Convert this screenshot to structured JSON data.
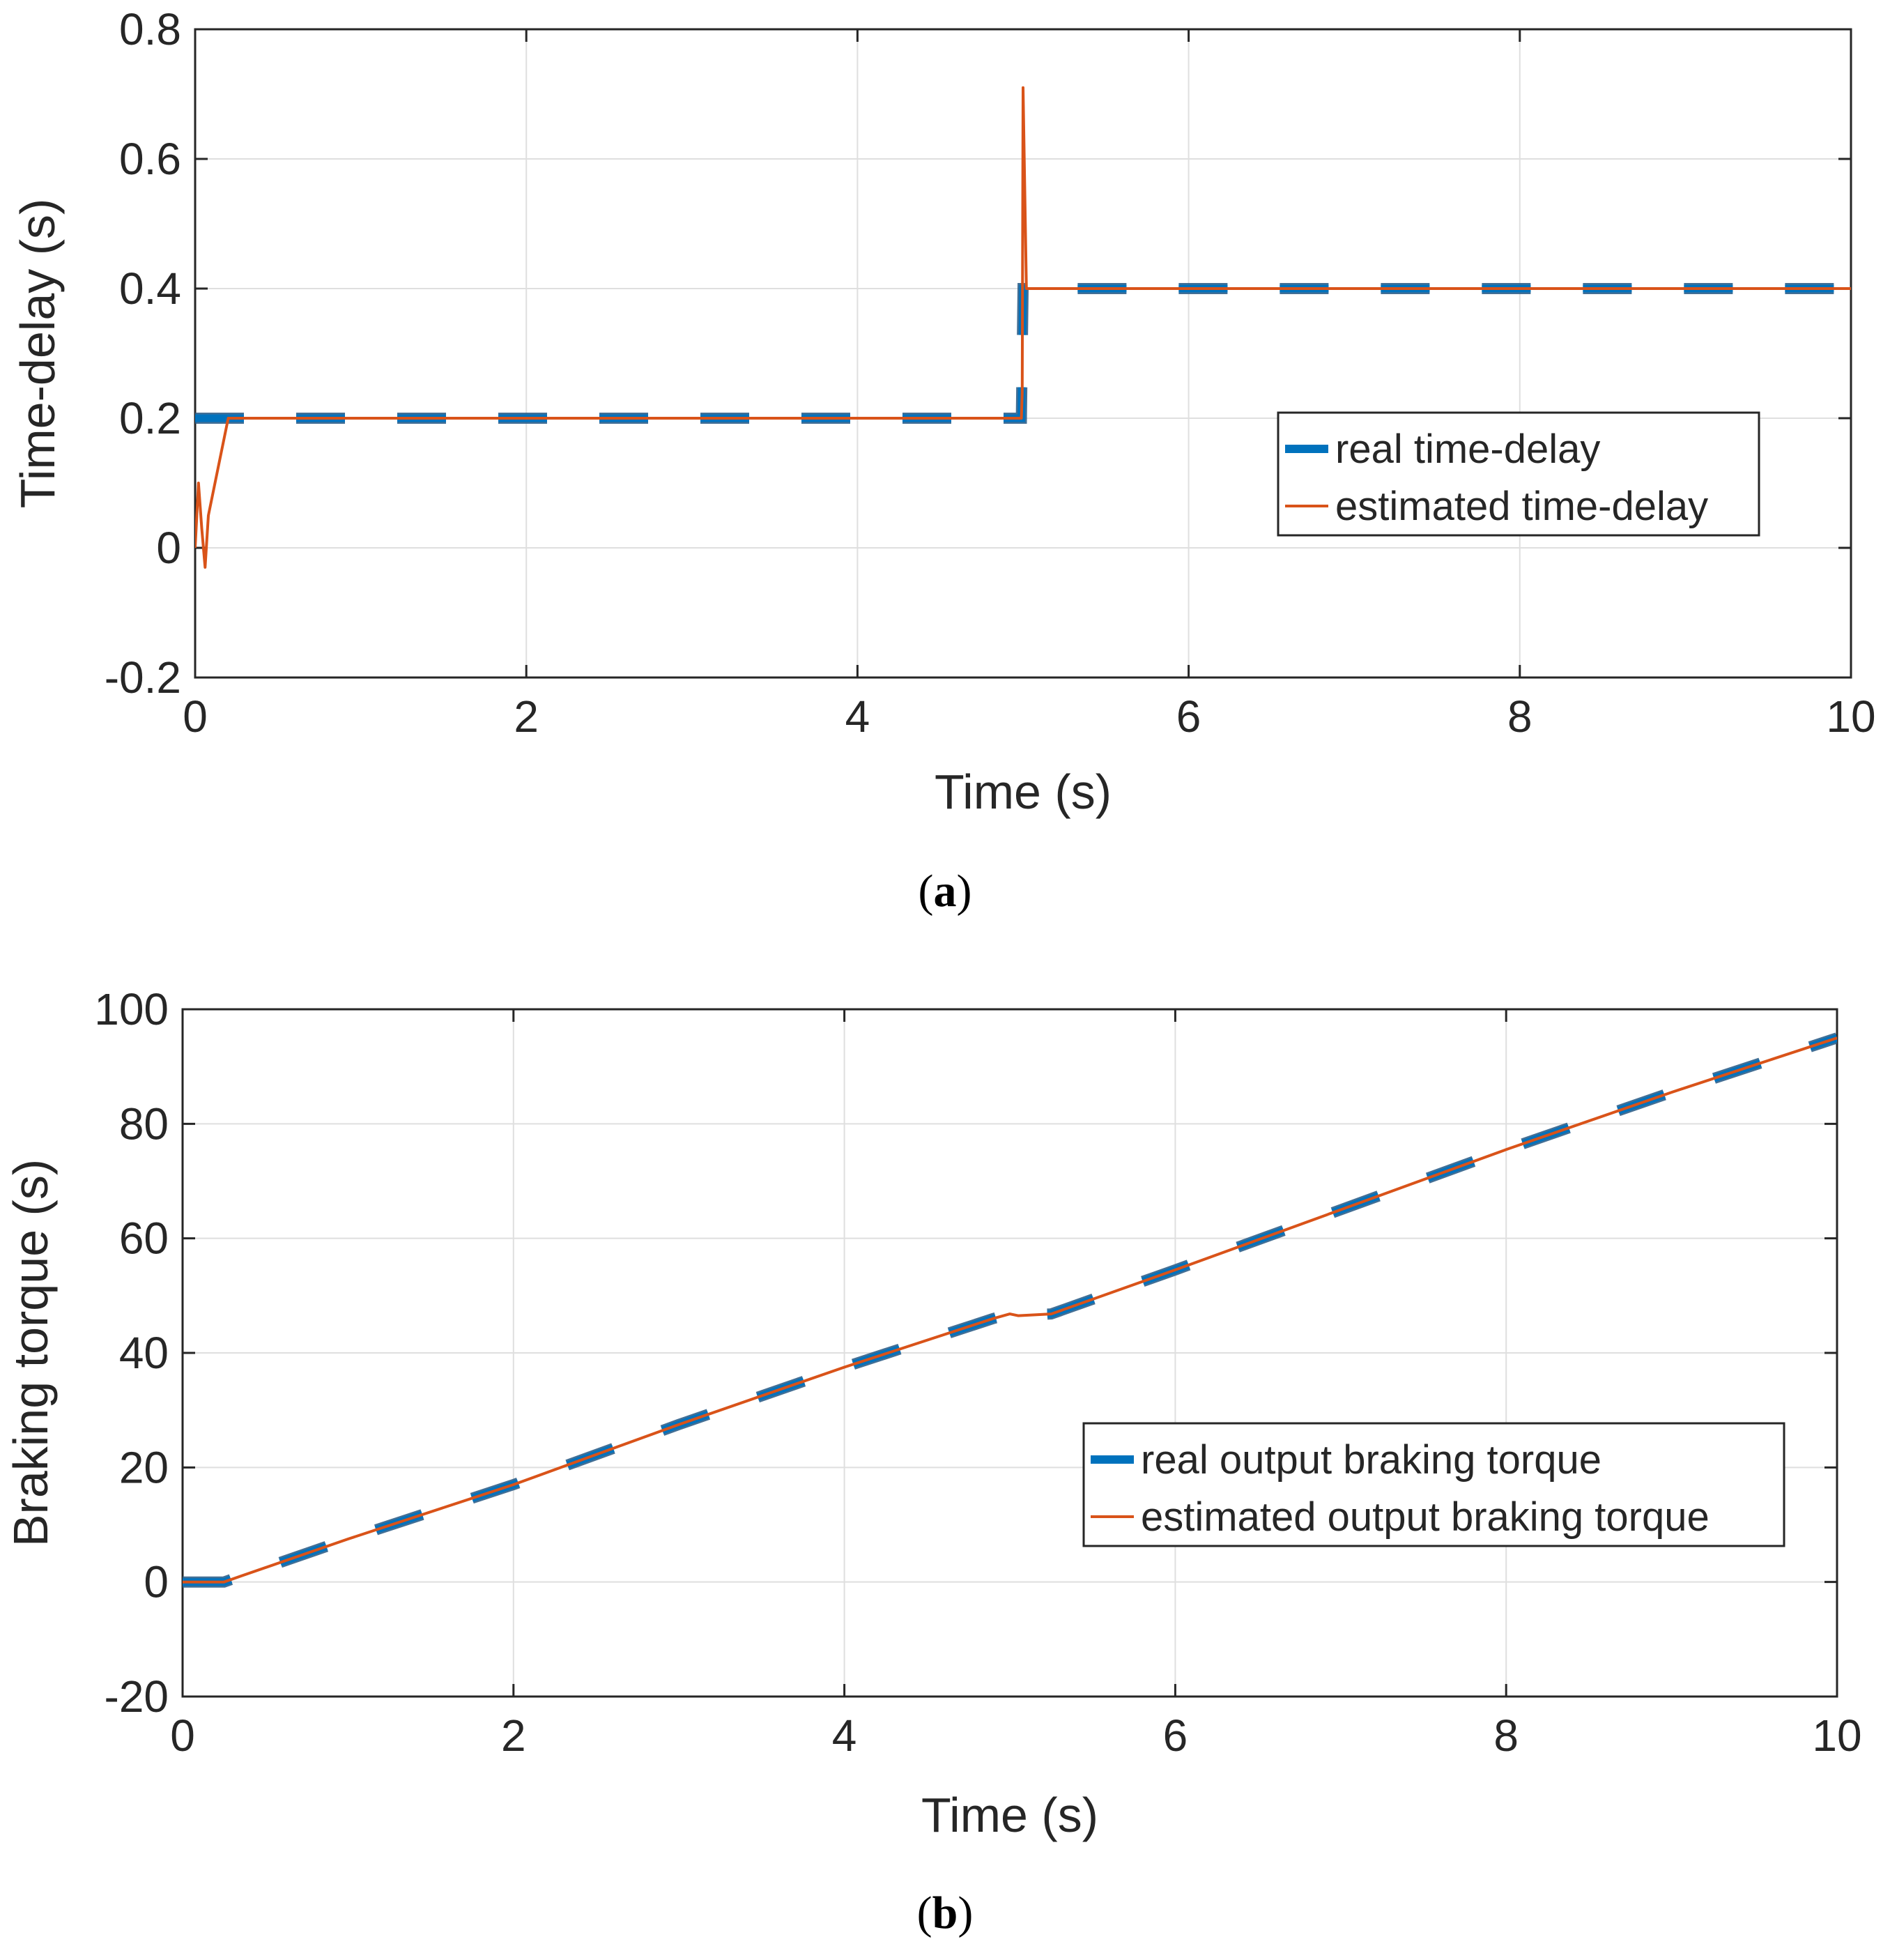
{
  "chart_data": [
    {
      "type": "line",
      "caption": {
        "open": "(",
        "letter": "a",
        "close": ")"
      },
      "xlabel": "Time (s)",
      "ylabel": "Time-delay (s)",
      "xlim": [
        0,
        10
      ],
      "ylim": [
        -0.2,
        0.8
      ],
      "xticks": [
        "0",
        "2",
        "4",
        "6",
        "8",
        "10"
      ],
      "yticks": [
        "-0.2",
        "0",
        "0.2",
        "0.4",
        "0.6",
        "0.8"
      ],
      "xtick_values": [
        0,
        2,
        4,
        6,
        8,
        10
      ],
      "ytick_values": [
        -0.2,
        0,
        0.2,
        0.4,
        0.6,
        0.8
      ],
      "grid": true,
      "legend_position": "right",
      "series": [
        {
          "name": "real time-delay",
          "style": "dashed",
          "color": "#0072BD",
          "points": [
            [
              0,
              0.2
            ],
            [
              4.99,
              0.2
            ],
            [
              5.0,
              0.4
            ],
            [
              10,
              0.4
            ]
          ]
        },
        {
          "name": "estimated time-delay",
          "style": "solid",
          "color": "#D95319",
          "points": [
            [
              0,
              0.0
            ],
            [
              0.02,
              0.1
            ],
            [
              0.04,
              0.03
            ],
            [
              0.06,
              -0.03
            ],
            [
              0.08,
              0.05
            ],
            [
              0.12,
              0.1
            ],
            [
              0.2,
              0.2
            ],
            [
              4.99,
              0.2
            ],
            [
              4.995,
              0.24
            ],
            [
              5.0,
              0.71
            ],
            [
              5.02,
              0.4
            ],
            [
              10,
              0.4
            ]
          ]
        }
      ]
    },
    {
      "type": "line",
      "caption": {
        "open": "(",
        "letter": "b",
        "close": ")"
      },
      "xlabel": "Time (s)",
      "ylabel": "Braking torque (s)",
      "xlim": [
        0,
        10
      ],
      "ylim": [
        -20,
        100
      ],
      "xticks": [
        "0",
        "2",
        "4",
        "6",
        "8",
        "10"
      ],
      "yticks": [
        "-20",
        "0",
        "20",
        "40",
        "60",
        "80",
        "100"
      ],
      "xtick_values": [
        0,
        2,
        4,
        6,
        8,
        10
      ],
      "ytick_values": [
        -20,
        0,
        20,
        40,
        60,
        80,
        100
      ],
      "grid": true,
      "legend_position": "right",
      "series": [
        {
          "name": "real output braking torque",
          "style": "dashed",
          "color": "#0072BD",
          "points": [
            [
              0,
              0
            ],
            [
              0.25,
              0
            ],
            [
              0.35,
              1
            ],
            [
              1,
              7.5
            ],
            [
              2,
              17
            ],
            [
              3,
              27.5
            ],
            [
              4,
              37.5
            ],
            [
              4.9,
              46
            ],
            [
              5.0,
              46.8
            ],
            [
              5.05,
              46.5
            ],
            [
              5.25,
              46.8
            ],
            [
              6,
              54.5
            ],
            [
              7,
              65
            ],
            [
              8,
              75.5
            ],
            [
              9,
              85.5
            ],
            [
              10,
              95
            ]
          ]
        },
        {
          "name": "estimated output braking torque",
          "style": "solid",
          "color": "#D95319",
          "points": [
            [
              0,
              0
            ],
            [
              0.25,
              0
            ],
            [
              0.35,
              1
            ],
            [
              1,
              7.5
            ],
            [
              2,
              17
            ],
            [
              3,
              27.5
            ],
            [
              4,
              37.5
            ],
            [
              4.9,
              46
            ],
            [
              5.0,
              46.8
            ],
            [
              5.05,
              46.5
            ],
            [
              5.25,
              46.8
            ],
            [
              6,
              54.5
            ],
            [
              7,
              65
            ],
            [
              8,
              75.5
            ],
            [
              9,
              85.5
            ],
            [
              10,
              95
            ]
          ]
        }
      ]
    }
  ]
}
